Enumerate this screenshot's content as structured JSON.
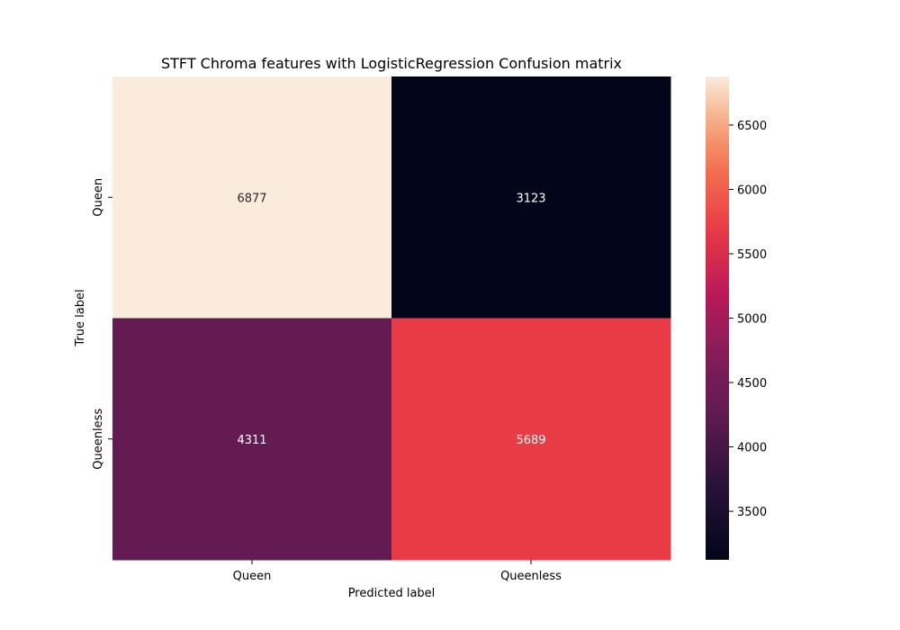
{
  "chart_data": {
    "type": "heatmap",
    "title": "STFT Chroma features with LogisticRegression Confusion matrix",
    "xlabel": "Predicted label",
    "ylabel": "True label",
    "x_categories": [
      "Queen",
      "Queenless"
    ],
    "y_categories": [
      "Queen",
      "Queenless"
    ],
    "values": [
      [
        6877,
        3123
      ],
      [
        4311,
        5689
      ]
    ],
    "cell_labels": [
      [
        "6877",
        "3123"
      ],
      [
        "4311",
        "5689"
      ]
    ],
    "colormap": "rocket",
    "colorbar": {
      "range": [
        3123,
        6877
      ],
      "ticks": [
        3500,
        4000,
        4500,
        5000,
        5500,
        6000,
        6500
      ],
      "tick_labels": [
        "3500",
        "4000",
        "4500",
        "5000",
        "5500",
        "6000",
        "6500"
      ],
      "placement": "right"
    },
    "grid": false
  },
  "colors": {
    "cell_text_light": "#ffffff",
    "cell_text_dark": "#262626",
    "axis": "#000000"
  }
}
